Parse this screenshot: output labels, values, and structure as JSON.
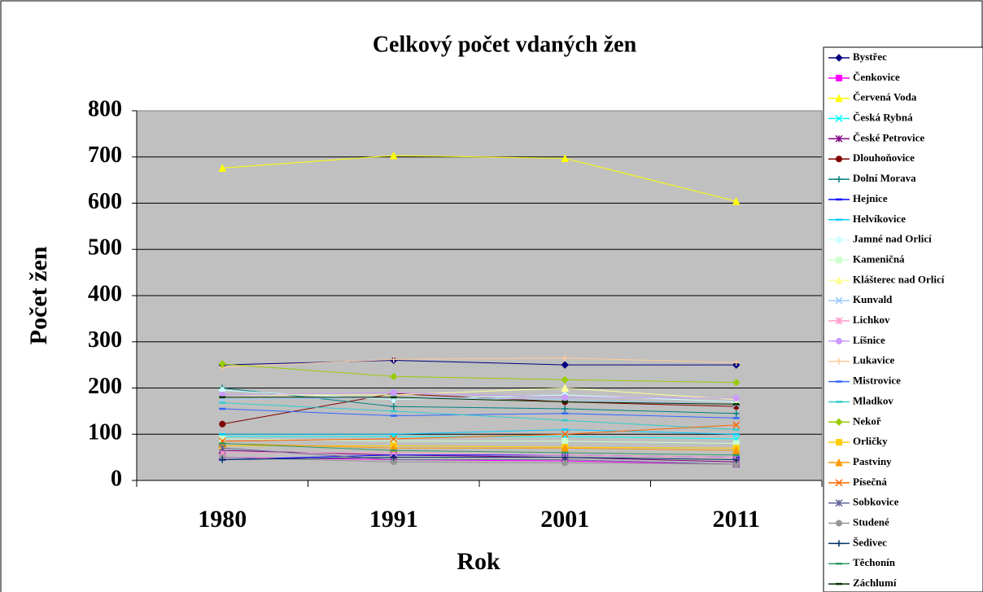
{
  "chart_data": {
    "type": "line",
    "title": "Celkový počet vdaných žen",
    "x_label": "Rok",
    "y_label": "Počet žen",
    "categories": [
      "1980",
      "1991",
      "2001",
      "2011"
    ],
    "ylim": [
      0,
      800
    ],
    "yticks": [
      0,
      100,
      200,
      300,
      400,
      500,
      600,
      700,
      800
    ],
    "grid": true,
    "legend": "right",
    "series": [
      {
        "name": "Bystřec",
        "color": "#000080",
        "marker": "diamond",
        "values": [
          250,
          260,
          250,
          250
        ]
      },
      {
        "name": "Čenkovice",
        "color": "#FF00FF",
        "marker": "square",
        "values": [
          50,
          45,
          42,
          35
        ]
      },
      {
        "name": "Červená Voda",
        "color": "#FFFF00",
        "marker": "triangle",
        "values": [
          676,
          703,
          697,
          604
        ]
      },
      {
        "name": "Česká Rybná",
        "color": "#00FFFF",
        "marker": "x",
        "values": [
          95,
          95,
          95,
          90
        ]
      },
      {
        "name": "České Petrovice",
        "color": "#800080",
        "marker": "star",
        "values": [
          65,
          55,
          50,
          40
        ]
      },
      {
        "name": "Dlouhoňovice",
        "color": "#800000",
        "marker": "circle",
        "values": [
          122,
          188,
          170,
          160
        ]
      },
      {
        "name": "Dolní Morava",
        "color": "#008080",
        "marker": "plus",
        "values": [
          200,
          160,
          155,
          145
        ]
      },
      {
        "name": "Hejnice",
        "color": "#0000FF",
        "marker": "dash",
        "values": [
          45,
          55,
          55,
          50
        ]
      },
      {
        "name": "Helvíkovice",
        "color": "#00CCFF",
        "marker": "dash",
        "values": [
          100,
          100,
          110,
          100
        ]
      },
      {
        "name": "Jamné nad Orlicí",
        "color": "#CCFFFF",
        "marker": "diamond",
        "values": [
          195,
          175,
          185,
          170
        ]
      },
      {
        "name": "Kameničná",
        "color": "#CCFFCC",
        "marker": "square",
        "values": [
          90,
          85,
          85,
          80
        ]
      },
      {
        "name": "Klášterec nad Orlicí",
        "color": "#FFFF99",
        "marker": "triangle",
        "values": [
          185,
          185,
          200,
          175
        ]
      },
      {
        "name": "Kunvald",
        "color": "#99CCFF",
        "marker": "x",
        "values": [
          175,
          180,
          175,
          165
        ]
      },
      {
        "name": "Lichkov",
        "color": "#FF99CC",
        "marker": "star",
        "values": [
          60,
          60,
          55,
          50
        ]
      },
      {
        "name": "Líšnice",
        "color": "#CC99FF",
        "marker": "circle",
        "values": [
          185,
          190,
          180,
          178
        ]
      },
      {
        "name": "Lukavice",
        "color": "#FFCC99",
        "marker": "plus",
        "values": [
          245,
          262,
          265,
          255
        ]
      },
      {
        "name": "Mistrovice",
        "color": "#3366FF",
        "marker": "dash",
        "values": [
          155,
          140,
          145,
          135
        ]
      },
      {
        "name": "Mladkov",
        "color": "#33CCCC",
        "marker": "dash",
        "values": [
          168,
          150,
          130,
          110
        ]
      },
      {
        "name": "Nekoř",
        "color": "#99CC00",
        "marker": "diamond",
        "values": [
          252,
          225,
          218,
          212
        ]
      },
      {
        "name": "Orličky",
        "color": "#FFCC00",
        "marker": "square",
        "values": [
          75,
          75,
          72,
          70
        ]
      },
      {
        "name": "Pastviny",
        "color": "#FF9900",
        "marker": "triangle",
        "values": [
          80,
          70,
          70,
          65
        ]
      },
      {
        "name": "Písečná",
        "color": "#FF6600",
        "marker": "x",
        "values": [
          85,
          90,
          100,
          120
        ]
      },
      {
        "name": "Sobkovice",
        "color": "#666699",
        "marker": "star",
        "values": [
          70,
          45,
          45,
          35
        ]
      },
      {
        "name": "Studené",
        "color": "#969696",
        "marker": "circle",
        "values": [
          50,
          40,
          38,
          35
        ]
      },
      {
        "name": "Šedivec",
        "color": "#003366",
        "marker": "plus",
        "values": [
          45,
          50,
          50,
          45
        ]
      },
      {
        "name": "Těchonín",
        "color": "#339966",
        "marker": "dash",
        "values": [
          80,
          65,
          60,
          55
        ]
      },
      {
        "name": "Záchlumí",
        "color": "#003300",
        "marker": "dash",
        "values": [
          180,
          180,
          170,
          165
        ]
      }
    ]
  }
}
